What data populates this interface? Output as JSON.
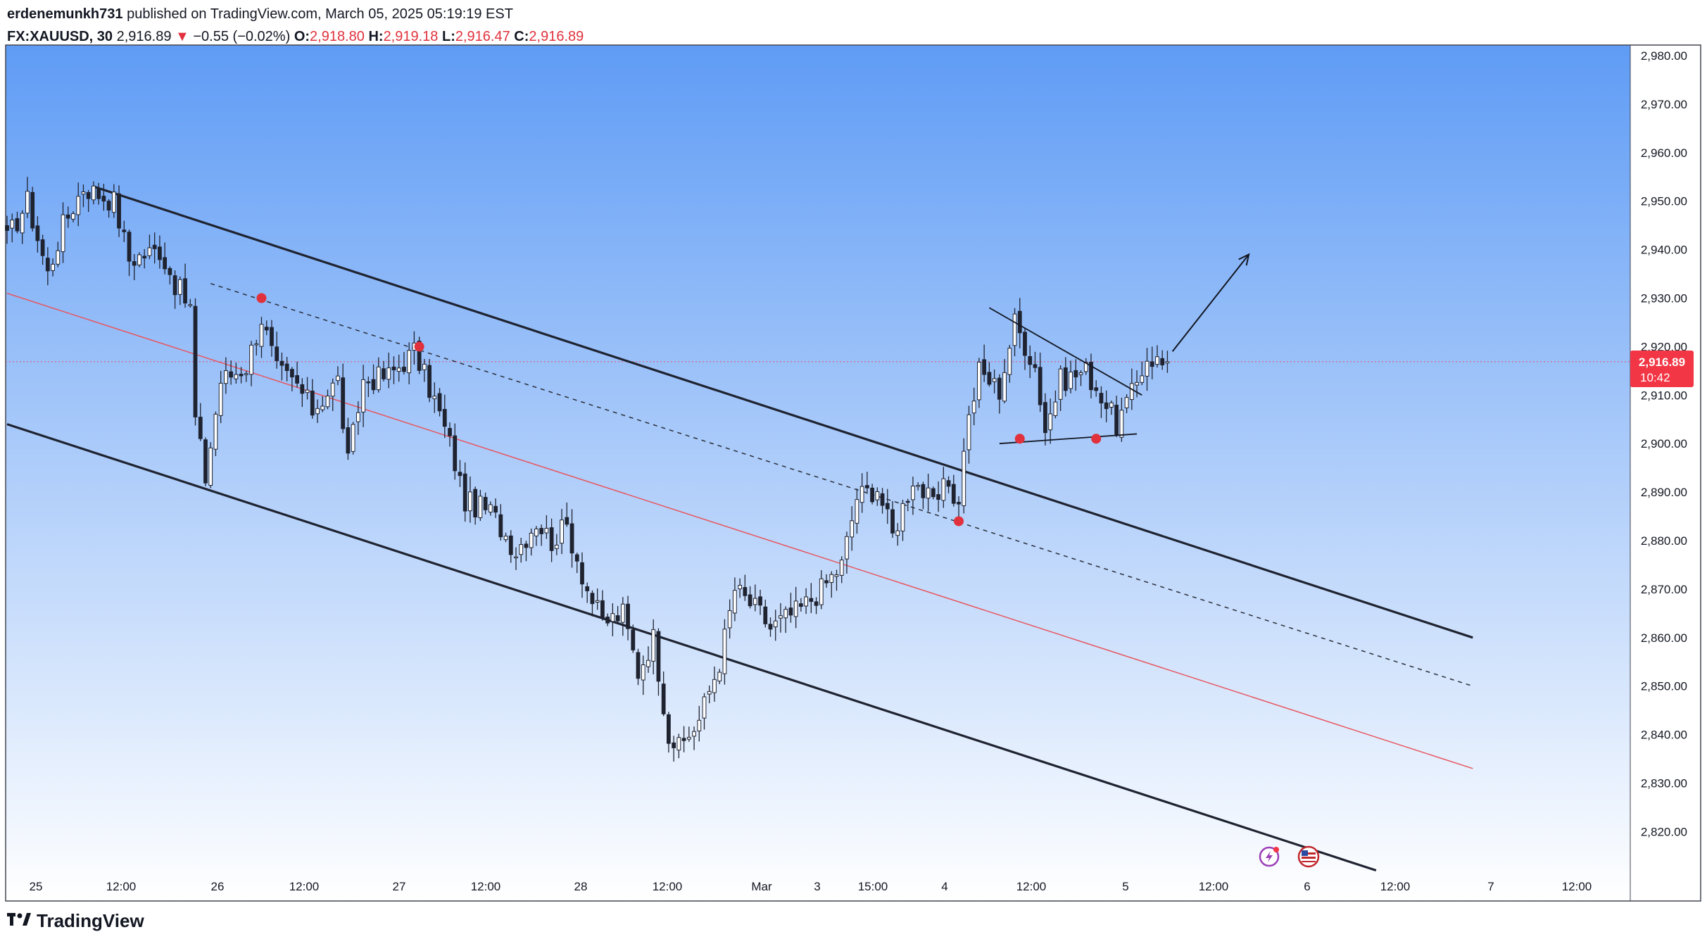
{
  "header": {
    "author": "erdenemunkh731",
    "published_text": "published on TradingView.com, March 05, 2025 05:19:19 EST",
    "symbol": "FX:XAUUSD, 30",
    "last": "2,916.89",
    "change_arrow": "▼",
    "change": "−0.55 (−0.02%)",
    "o_label": "O:",
    "o": "2,918.80",
    "h_label": "H:",
    "h": "2,919.18",
    "l_label": "L:",
    "l": "2,916.47",
    "c_label": "C:",
    "c": "2,916.89"
  },
  "price_tag": {
    "price": "2,916.89",
    "countdown": "10:42"
  },
  "footer": {
    "logo_text": "TradingView"
  },
  "icons": [
    "flash-icon",
    "us-flag-icon",
    "tradingview-logo-icon"
  ],
  "colors": {
    "bg_top": "#5f9cf5",
    "bg_bottom": "#ffffff",
    "candle": "#1f2330",
    "channel": "#1f2330",
    "median": "#e8565f",
    "marker": "#e0313c",
    "price_tag": "#f23645"
  },
  "chart_data": {
    "type": "candlestick",
    "title": "",
    "xlabel": "",
    "ylabel": "",
    "ylim": [
      2812,
      2985
    ],
    "y_ticks": [
      "2,980.00",
      "2,970.00",
      "2,960.00",
      "2,950.00",
      "2,940.00",
      "2,930.00",
      "2,920.00",
      "2,910.00",
      "2,900.00",
      "2,890.00",
      "2,880.00",
      "2,870.00",
      "2,860.00",
      "2,850.00",
      "2,840.00",
      "2,830.00",
      "2,820.00"
    ],
    "x_ticks": [
      "25",
      "12:00",
      "26",
      "12:00",
      "27",
      "12:00",
      "28",
      "12:00",
      "Mar",
      "3",
      "15:00",
      "4",
      "12:00",
      "5",
      "12:00",
      "6",
      "12:00",
      "7",
      "12:00"
    ],
    "last_price": 2916.89,
    "price_path": [
      [
        0,
        2942
      ],
      [
        4,
        2950
      ],
      [
        8,
        2935
      ],
      [
        11,
        2945
      ],
      [
        15,
        2953
      ],
      [
        21,
        2950
      ],
      [
        24,
        2938
      ],
      [
        30,
        2940
      ],
      [
        33,
        2933
      ],
      [
        36,
        2928
      ],
      [
        37,
        2905
      ],
      [
        39,
        2893
      ],
      [
        42,
        2913
      ],
      [
        47,
        2916
      ],
      [
        50,
        2926
      ],
      [
        53,
        2915
      ],
      [
        57,
        2912
      ],
      [
        60,
        2907
      ],
      [
        65,
        2913
      ],
      [
        67,
        2896
      ],
      [
        70,
        2913
      ],
      [
        75,
        2914
      ],
      [
        80,
        2919
      ],
      [
        84,
        2909
      ],
      [
        87,
        2900
      ],
      [
        90,
        2888
      ],
      [
        95,
        2886
      ],
      [
        100,
        2878
      ],
      [
        104,
        2884
      ],
      [
        107,
        2880
      ],
      [
        110,
        2883
      ],
      [
        114,
        2870
      ],
      [
        117,
        2863
      ],
      [
        121,
        2865
      ],
      [
        124,
        2853
      ],
      [
        127,
        2860
      ],
      [
        130,
        2840
      ],
      [
        132,
        2837
      ],
      [
        136,
        2843
      ],
      [
        140,
        2855
      ],
      [
        143,
        2870
      ],
      [
        148,
        2865
      ],
      [
        150,
        2862
      ],
      [
        156,
        2866
      ],
      [
        160,
        2870
      ],
      [
        164,
        2875
      ],
      [
        167,
        2889
      ],
      [
        171,
        2891
      ],
      [
        174,
        2881
      ],
      [
        178,
        2893
      ],
      [
        182,
        2887
      ],
      [
        185,
        2892
      ],
      [
        187,
        2887
      ],
      [
        188,
        2900
      ],
      [
        191,
        2915
      ],
      [
        195,
        2911
      ],
      [
        198,
        2925
      ],
      [
        202,
        2916
      ],
      [
        204,
        2903
      ],
      [
        207,
        2913
      ],
      [
        212,
        2915
      ],
      [
        215,
        2910
      ],
      [
        218,
        2904
      ],
      [
        221,
        2910
      ],
      [
        224,
        2918
      ],
      [
        228,
        2916
      ]
    ],
    "annotations": {
      "channel_upper": [
        [
          17,
          2953
        ],
        [
          288,
          2860
        ]
      ],
      "channel_lower": [
        [
          0,
          2904
        ],
        [
          269,
          2812
        ]
      ],
      "median_line": [
        [
          0,
          2931
        ],
        [
          288,
          2833
        ]
      ],
      "dashed_line": [
        [
          40,
          2933
        ],
        [
          288,
          2850
        ]
      ],
      "markers": [
        [
          50,
          2930
        ],
        [
          81,
          2920
        ],
        [
          187,
          2884
        ],
        [
          199,
          2901
        ],
        [
          214,
          2901
        ]
      ],
      "triangle_upper": [
        [
          193,
          2928
        ],
        [
          223,
          2910
        ]
      ],
      "triangle_lower": [
        [
          195,
          2900
        ],
        [
          222,
          2902
        ]
      ],
      "arrow": [
        [
          229,
          2919
        ],
        [
          244,
          2939
        ]
      ]
    },
    "grid": false,
    "legend": "none"
  }
}
